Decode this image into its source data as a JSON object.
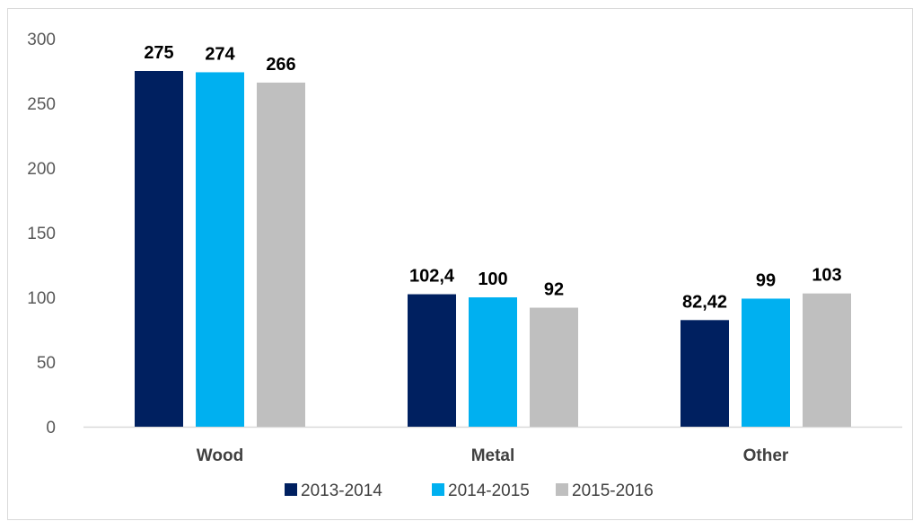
{
  "chart_data": {
    "type": "bar",
    "title": "",
    "xlabel": "",
    "ylabel": "",
    "categories": [
      "Wood",
      "Metal",
      "Other"
    ],
    "series": [
      {
        "name": "2013-2014",
        "values": [
          275,
          102.4,
          82.42
        ],
        "labels": [
          "275",
          "102,4",
          "82,42"
        ],
        "color": "#002060"
      },
      {
        "name": "2014-2015",
        "values": [
          274,
          100,
          99
        ],
        "labels": [
          "274",
          "100",
          "99"
        ],
        "color": "#00B0F0"
      },
      {
        "name": "2015-2016",
        "values": [
          266,
          92,
          103
        ],
        "labels": [
          "266",
          "92",
          "103"
        ],
        "color": "#BFBFBF"
      }
    ],
    "ylim": [
      0,
      300
    ],
    "yticks": [
      "0",
      "50",
      "100",
      "150",
      "200",
      "250",
      "300"
    ],
    "grid": false,
    "legend_position": "bottom"
  }
}
